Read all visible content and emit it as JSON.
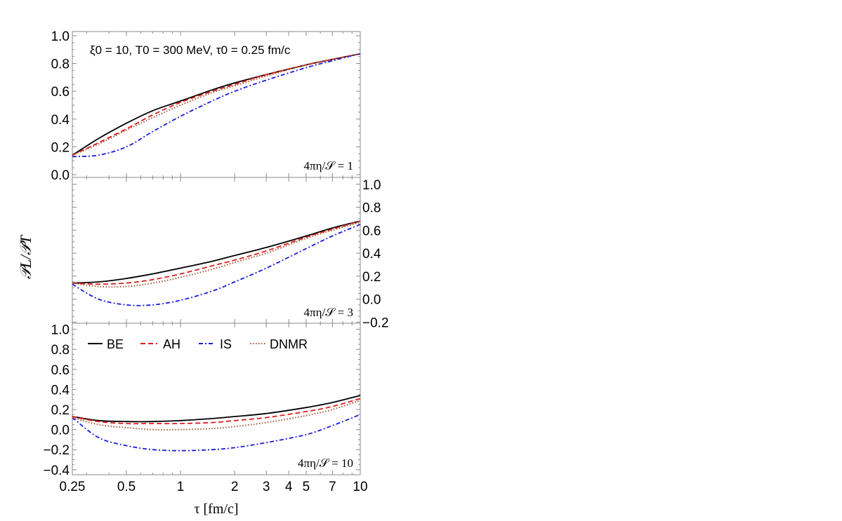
{
  "chart_data": {
    "type": "line",
    "annotation": "ξ0 = 10, T0 = 300 MeV, τ0 = 0.25 fm/c",
    "ylabel": "𝒫L/𝒫T",
    "xlabel": "τ [fm/c]",
    "xscale": "log",
    "xlim": [
      0.25,
      10
    ],
    "x_tick_labels": [
      "0.25",
      "0.5",
      "1",
      "2",
      "3",
      "4",
      "5",
      "7",
      "10"
    ],
    "legend": {
      "placement": "top-left of bottom panel",
      "entries": [
        {
          "name": "BE",
          "color": "#000000",
          "style": "solid"
        },
        {
          "name": "AH",
          "color": "#dd1c1c",
          "style": "dashed"
        },
        {
          "name": "IS",
          "color": "#1a1adb",
          "style": "dash-dot"
        },
        {
          "name": "DNMR",
          "color": "#a0522d",
          "style": "dotted"
        }
      ]
    },
    "panels": [
      {
        "label": "4πη/𝒮 = 1",
        "ylim": [
          -0.02,
          1.03
        ],
        "y_tick_values": [
          0.0,
          0.2,
          0.4,
          0.6,
          0.8,
          1.0
        ],
        "y_tick_labels": [
          "0.0",
          "0.2",
          "0.4",
          "0.6",
          "0.8",
          "1.0"
        ],
        "y_axis_side": "left",
        "x": [
          0.25,
          0.35,
          0.5,
          0.7,
          1,
          1.5,
          2,
          3,
          5,
          7,
          10
        ],
        "series": [
          {
            "name": "BE",
            "values": [
              0.14,
              0.26,
              0.37,
              0.46,
              0.53,
              0.61,
              0.66,
              0.72,
              0.79,
              0.83,
              0.87
            ]
          },
          {
            "name": "AH",
            "values": [
              0.14,
              0.23,
              0.33,
              0.43,
              0.52,
              0.6,
              0.65,
              0.72,
              0.79,
              0.83,
              0.87
            ]
          },
          {
            "name": "IS",
            "values": [
              0.13,
              0.14,
              0.2,
              0.31,
              0.42,
              0.53,
              0.6,
              0.68,
              0.77,
              0.82,
              0.87
            ]
          },
          {
            "name": "DNMR",
            "values": [
              0.14,
              0.22,
              0.32,
              0.41,
              0.5,
              0.59,
              0.64,
              0.71,
              0.79,
              0.83,
              0.87
            ]
          }
        ]
      },
      {
        "label": "4πη/𝒮 = 3",
        "ylim": [
          -0.21,
          1.06
        ],
        "y_tick_values": [
          -0.2,
          0.0,
          0.2,
          0.4,
          0.6,
          0.8,
          1.0
        ],
        "y_tick_labels": [
          "−0.2",
          "0.0",
          "0.2",
          "0.4",
          "0.6",
          "0.8",
          "1.0"
        ],
        "y_axis_side": "right",
        "x": [
          0.25,
          0.35,
          0.5,
          0.7,
          1,
          1.5,
          2,
          3,
          5,
          7,
          10
        ],
        "series": [
          {
            "name": "BE",
            "values": [
              0.14,
              0.15,
              0.18,
              0.22,
              0.27,
              0.33,
              0.38,
              0.45,
              0.55,
              0.62,
              0.68
            ]
          },
          {
            "name": "AH",
            "values": [
              0.14,
              0.13,
              0.14,
              0.17,
              0.22,
              0.29,
              0.34,
              0.42,
              0.54,
              0.61,
              0.68
            ]
          },
          {
            "name": "IS",
            "values": [
              0.13,
              0.0,
              -0.05,
              -0.05,
              -0.01,
              0.07,
              0.15,
              0.27,
              0.44,
              0.55,
              0.65
            ]
          },
          {
            "name": "DNMR",
            "values": [
              0.14,
              0.11,
              0.11,
              0.14,
              0.19,
              0.26,
              0.32,
              0.4,
              0.53,
              0.6,
              0.67
            ]
          }
        ]
      },
      {
        "label": "4πη/𝒮 = 10",
        "ylim": [
          -0.45,
          1.06
        ],
        "y_tick_values": [
          -0.4,
          -0.2,
          0.0,
          0.2,
          0.4,
          0.6,
          0.8,
          1.0
        ],
        "y_tick_labels": [
          "−0.4",
          "−0.2",
          "0.0",
          "0.2",
          "0.4",
          "0.6",
          "0.8",
          "1.0"
        ],
        "y_axis_side": "left",
        "x": [
          0.25,
          0.35,
          0.5,
          0.7,
          1,
          1.5,
          2,
          3,
          5,
          7,
          10
        ],
        "series": [
          {
            "name": "BE",
            "values": [
              0.13,
              0.09,
              0.08,
              0.08,
              0.09,
              0.11,
              0.13,
              0.16,
              0.22,
              0.27,
              0.34
            ]
          },
          {
            "name": "AH",
            "values": [
              0.13,
              0.08,
              0.06,
              0.06,
              0.06,
              0.07,
              0.09,
              0.12,
              0.18,
              0.23,
              0.31
            ]
          },
          {
            "name": "IS",
            "values": [
              0.12,
              -0.08,
              -0.16,
              -0.2,
              -0.21,
              -0.2,
              -0.18,
              -0.13,
              -0.05,
              0.04,
              0.15
            ]
          },
          {
            "name": "DNMR",
            "values": [
              0.12,
              0.05,
              0.02,
              0.0,
              0.0,
              0.01,
              0.03,
              0.07,
              0.14,
              0.2,
              0.29
            ]
          }
        ]
      }
    ]
  }
}
